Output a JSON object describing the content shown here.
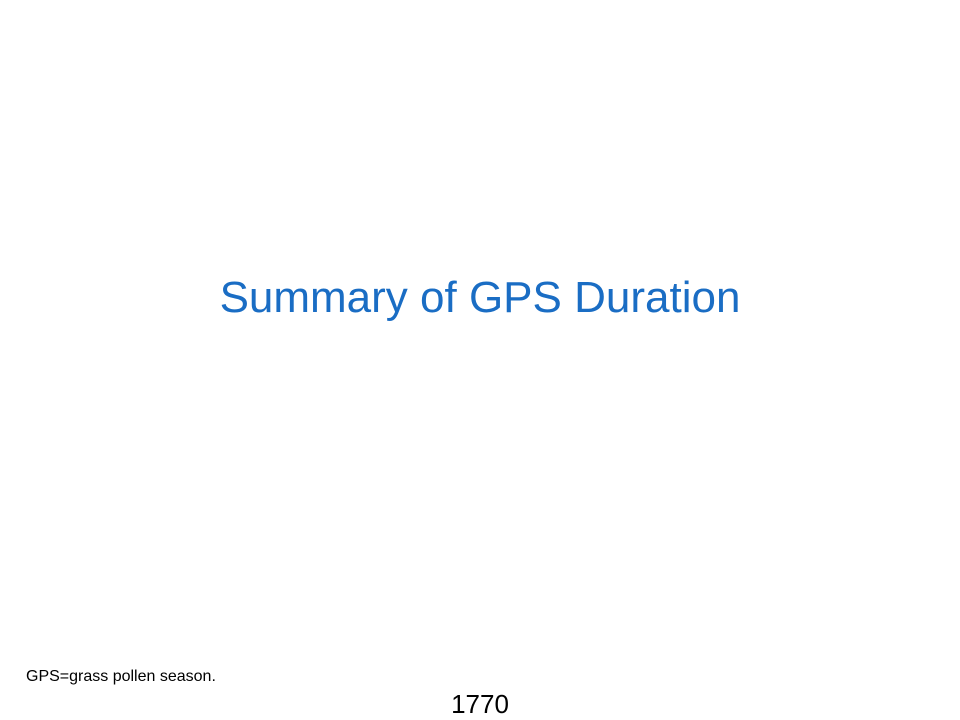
{
  "slide": {
    "title": "Summary of GPS Duration",
    "footnote": "GPS=grass pollen season.",
    "page_number": "1770"
  },
  "colors": {
    "title": "#1a6dc4",
    "text": "#000000",
    "background": "#ffffff"
  }
}
